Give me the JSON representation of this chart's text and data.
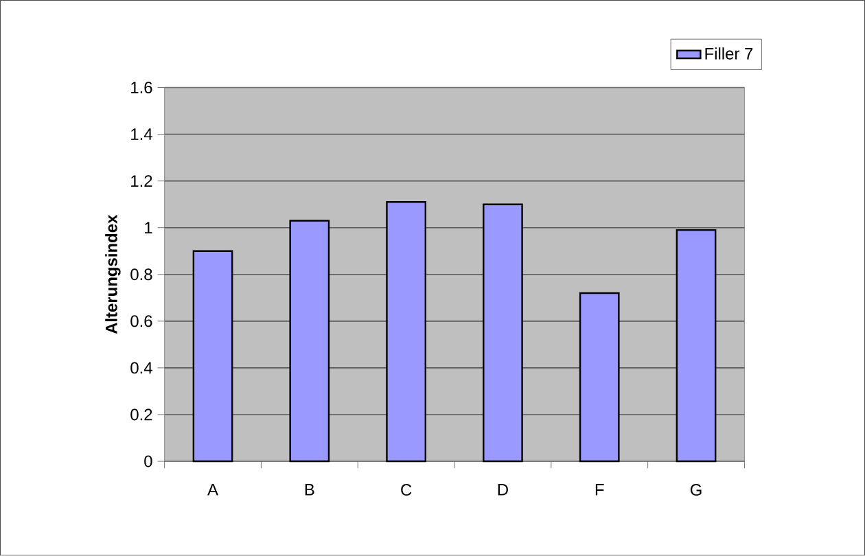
{
  "chart_data": {
    "type": "bar",
    "ylabel": "Alterungsindex",
    "categories": [
      "A",
      "B",
      "C",
      "D",
      "F",
      "G"
    ],
    "series": [
      {
        "name": "Filler 7",
        "color": "#9999ff",
        "values": [
          0.9,
          1.03,
          1.11,
          1.1,
          0.72,
          0.99
        ]
      }
    ],
    "ylim": [
      0,
      1.6
    ],
    "yticks": [
      0,
      0.2,
      0.4,
      0.6,
      0.8,
      1,
      1.2,
      1.4,
      1.6
    ],
    "grid": "y",
    "legend": "top right"
  }
}
